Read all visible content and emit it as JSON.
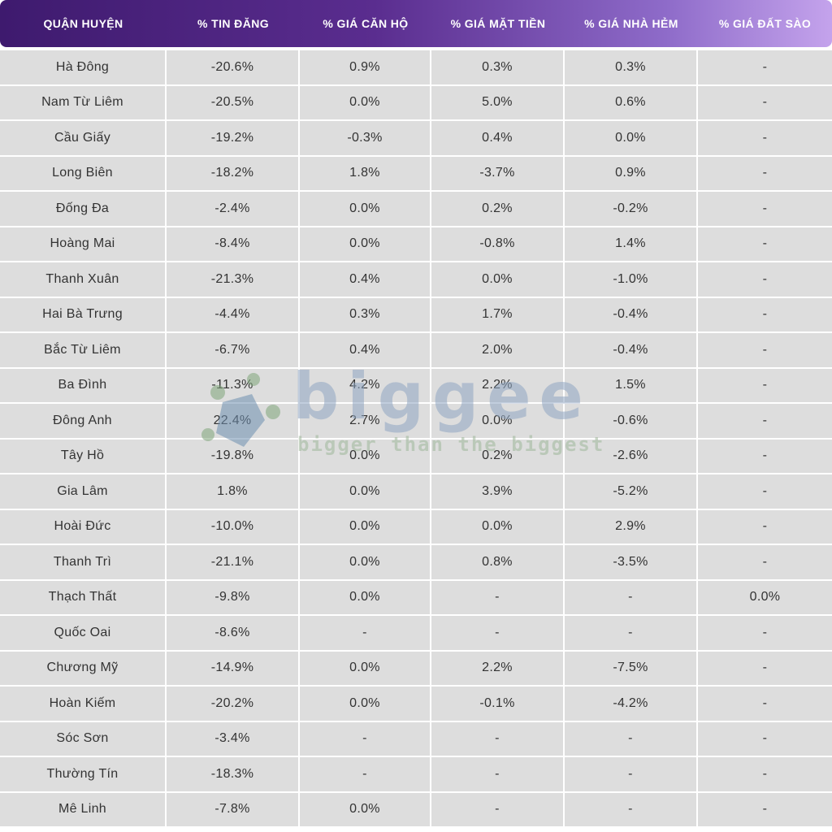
{
  "table": {
    "headers": [
      "QUẬN HUYỆN",
      "% TIN ĐĂNG",
      "% GIÁ CĂN HỘ",
      "% GIÁ MẶT TIỀN",
      "% GIÁ NHÀ HẺM",
      "% GIÁ ĐẤT SÀO"
    ],
    "rows": [
      [
        "Hà Đông",
        "-20.6%",
        "0.9%",
        "0.3%",
        "0.3%",
        "-"
      ],
      [
        "Nam Từ Liêm",
        "-20.5%",
        "0.0%",
        "5.0%",
        "0.6%",
        "-"
      ],
      [
        "Cầu Giấy",
        "-19.2%",
        "-0.3%",
        "0.4%",
        "0.0%",
        "-"
      ],
      [
        "Long Biên",
        "-18.2%",
        "1.8%",
        "-3.7%",
        "0.9%",
        "-"
      ],
      [
        "Đống Đa",
        "-2.4%",
        "0.0%",
        "0.2%",
        "-0.2%",
        "-"
      ],
      [
        "Hoàng Mai",
        "-8.4%",
        "0.0%",
        "-0.8%",
        "1.4%",
        "-"
      ],
      [
        "Thanh Xuân",
        "-21.3%",
        "0.4%",
        "0.0%",
        "-1.0%",
        "-"
      ],
      [
        "Hai Bà Trưng",
        "-4.4%",
        "0.3%",
        "1.7%",
        "-0.4%",
        "-"
      ],
      [
        "Bắc Từ Liêm",
        "-6.7%",
        "0.4%",
        "2.0%",
        "-0.4%",
        "-"
      ],
      [
        "Ba Đình",
        "-11.3%",
        "4.2%",
        "2.2%",
        "1.5%",
        "-"
      ],
      [
        "Đông Anh",
        "22.4%",
        "2.7%",
        "0.0%",
        "-0.6%",
        "-"
      ],
      [
        "Tây Hồ",
        "-19.8%",
        "0.0%",
        "0.2%",
        "-2.6%",
        "-"
      ],
      [
        "Gia Lâm",
        "1.8%",
        "0.0%",
        "3.9%",
        "-5.2%",
        "-"
      ],
      [
        "Hoài Đức",
        "-10.0%",
        "0.0%",
        "0.0%",
        "2.9%",
        "-"
      ],
      [
        "Thanh Trì",
        "-21.1%",
        "0.0%",
        "0.8%",
        "-3.5%",
        "-"
      ],
      [
        "Thạch Thất",
        "-9.8%",
        "0.0%",
        "-",
        "-",
        "0.0%"
      ],
      [
        "Quốc Oai",
        "-8.6%",
        "-",
        "-",
        "-",
        "-"
      ],
      [
        "Chương Mỹ",
        "-14.9%",
        "0.0%",
        "2.2%",
        "-7.5%",
        "-"
      ],
      [
        "Hoàn Kiếm",
        "-20.2%",
        "0.0%",
        "-0.1%",
        "-4.2%",
        "-"
      ],
      [
        "Sóc Sơn",
        "-3.4%",
        "-",
        "-",
        "-",
        "-"
      ],
      [
        "Thường Tín",
        "-18.3%",
        "-",
        "-",
        "-",
        "-"
      ],
      [
        "Mê Linh",
        "-7.8%",
        "0.0%",
        "-",
        "-",
        "-"
      ]
    ]
  },
  "chart_data": {
    "type": "table",
    "columns": [
      "QUẬN HUYỆN",
      "% TIN ĐĂNG",
      "% GIÁ CĂN HỘ",
      "% GIÁ MẶT TIỀN",
      "% GIÁ NHÀ HẺM",
      "% GIÁ ĐẤT SÀO"
    ],
    "rows": [
      [
        "Hà Đông",
        -20.6,
        0.9,
        0.3,
        0.3,
        null
      ],
      [
        "Nam Từ Liêm",
        -20.5,
        0.0,
        5.0,
        0.6,
        null
      ],
      [
        "Cầu Giấy",
        -19.2,
        -0.3,
        0.4,
        0.0,
        null
      ],
      [
        "Long Biên",
        -18.2,
        1.8,
        -3.7,
        0.9,
        null
      ],
      [
        "Đống Đa",
        -2.4,
        0.0,
        0.2,
        -0.2,
        null
      ],
      [
        "Hoàng Mai",
        -8.4,
        0.0,
        -0.8,
        1.4,
        null
      ],
      [
        "Thanh Xuân",
        -21.3,
        0.4,
        0.0,
        -1.0,
        null
      ],
      [
        "Hai Bà Trưng",
        -4.4,
        0.3,
        1.7,
        -0.4,
        null
      ],
      [
        "Bắc Từ Liêm",
        -6.7,
        0.4,
        2.0,
        -0.4,
        null
      ],
      [
        "Ba Đình",
        -11.3,
        4.2,
        2.2,
        1.5,
        null
      ],
      [
        "Đông Anh",
        22.4,
        2.7,
        0.0,
        -0.6,
        null
      ],
      [
        "Tây Hồ",
        -19.8,
        0.0,
        0.2,
        -2.6,
        null
      ],
      [
        "Gia Lâm",
        1.8,
        0.0,
        3.9,
        -5.2,
        null
      ],
      [
        "Hoài Đức",
        -10.0,
        0.0,
        0.0,
        2.9,
        null
      ],
      [
        "Thanh Trì",
        -21.1,
        0.0,
        0.8,
        -3.5,
        null
      ],
      [
        "Thạch Thất",
        -9.8,
        0.0,
        null,
        null,
        0.0
      ],
      [
        "Quốc Oai",
        -8.6,
        null,
        null,
        null,
        null
      ],
      [
        "Chương Mỹ",
        -14.9,
        0.0,
        2.2,
        -7.5,
        null
      ],
      [
        "Hoàn Kiếm",
        -20.2,
        0.0,
        -0.1,
        -4.2,
        null
      ],
      [
        "Sóc Sơn",
        -3.4,
        null,
        null,
        null,
        null
      ],
      [
        "Thường Tín",
        -18.3,
        null,
        null,
        null,
        null
      ],
      [
        "Mê Linh",
        -7.8,
        0.0,
        null,
        null,
        null
      ]
    ]
  },
  "watermark": {
    "brand": "biggee",
    "tagline": "bigger than the biggest"
  },
  "colors": {
    "negative": "#ef3b47",
    "positive": "#1fbf5b",
    "zero": "#333333",
    "header_start": "#3e1a6e",
    "header_end": "#c4a3ec",
    "cell_bg": "#dddddd"
  }
}
